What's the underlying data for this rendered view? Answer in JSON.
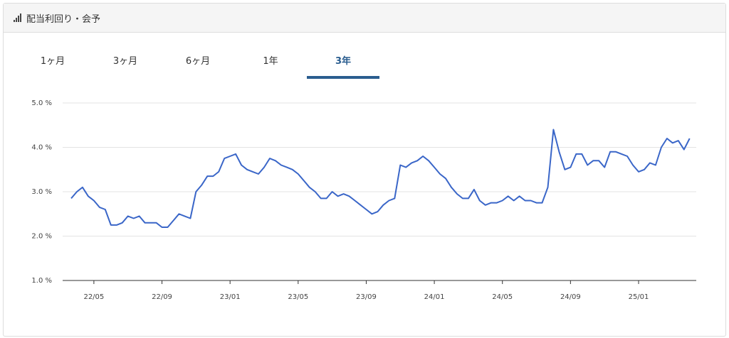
{
  "header": {
    "title": "配当利回り・会予"
  },
  "tabs": [
    "1ヶ月",
    "3ヶ月",
    "6ヶ月",
    "1年",
    "3年"
  ],
  "selected_tab": 4,
  "chart_data": {
    "type": "line",
    "categories": [
      null,
      null,
      null,
      null,
      "22/05",
      null,
      null,
      null,
      null,
      null,
      null,
      null,
      null,
      null,
      null,
      null,
      "22/09",
      null,
      null,
      null,
      null,
      null,
      null,
      null,
      null,
      null,
      null,
      null,
      "23/01",
      null,
      null,
      null,
      null,
      null,
      null,
      null,
      null,
      null,
      null,
      null,
      "23/05",
      null,
      null,
      null,
      null,
      null,
      null,
      null,
      null,
      null,
      null,
      null,
      "23/09",
      null,
      null,
      null,
      null,
      null,
      null,
      null,
      null,
      null,
      null,
      null,
      "24/01",
      null,
      null,
      null,
      null,
      null,
      null,
      null,
      null,
      null,
      null,
      null,
      "24/05",
      null,
      null,
      null,
      null,
      null,
      null,
      null,
      null,
      null,
      null,
      null,
      "24/09",
      null,
      null,
      null,
      null,
      null,
      null,
      null,
      null,
      null,
      null,
      null,
      "25/01",
      null,
      null,
      null,
      null,
      null,
      null,
      null,
      null,
      null
    ],
    "series": [
      {
        "color": "#3a66c8",
        "values": [
          2.85,
          3.0,
          3.1,
          2.9,
          2.8,
          2.65,
          2.6,
          2.25,
          2.25,
          2.3,
          2.45,
          2.4,
          2.45,
          2.3,
          2.3,
          2.3,
          2.2,
          2.2,
          2.35,
          2.5,
          2.45,
          2.4,
          3.0,
          3.15,
          3.35,
          3.35,
          3.45,
          3.75,
          3.8,
          3.85,
          3.6,
          3.5,
          3.45,
          3.4,
          3.55,
          3.75,
          3.7,
          3.6,
          3.55,
          3.5,
          3.4,
          3.25,
          3.1,
          3.0,
          2.85,
          2.85,
          3.0,
          2.9,
          2.95,
          2.9,
          2.8,
          2.7,
          2.6,
          2.5,
          2.55,
          2.7,
          2.8,
          2.85,
          3.6,
          3.55,
          3.65,
          3.7,
          3.8,
          3.7,
          3.55,
          3.4,
          3.3,
          3.1,
          2.95,
          2.85,
          2.85,
          3.05,
          2.8,
          2.7,
          2.75,
          2.75,
          2.8,
          2.9,
          2.8,
          2.9,
          2.8,
          2.8,
          2.75,
          2.75,
          3.1,
          4.4,
          3.9,
          3.5,
          3.55,
          3.85,
          3.85,
          3.6,
          3.7,
          3.7,
          3.55,
          3.9,
          3.9,
          3.85,
          3.8,
          3.6,
          3.45,
          3.5,
          3.65,
          3.6,
          4.0,
          4.2,
          4.1,
          4.15,
          3.95,
          4.2
        ]
      }
    ],
    "ylim": [
      1,
      5
    ],
    "yticks": [
      {
        "value": 1,
        "label": "1.0 %"
      },
      {
        "value": 2,
        "label": "2.0 %"
      },
      {
        "value": 3,
        "label": "3.0 %"
      },
      {
        "value": 4,
        "label": "4.0 %"
      },
      {
        "value": 5,
        "label": "5.0 %"
      }
    ],
    "grid": true
  }
}
